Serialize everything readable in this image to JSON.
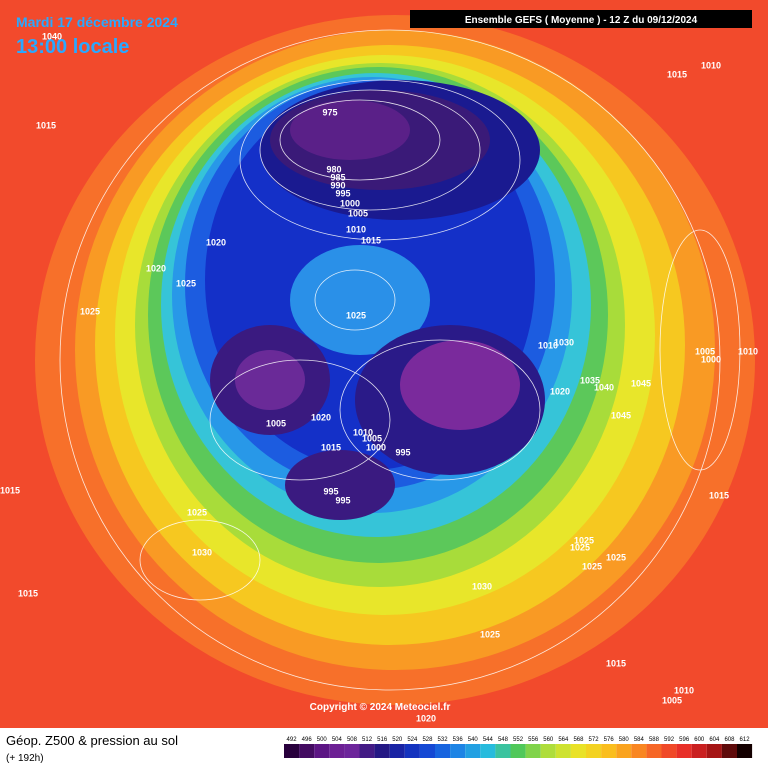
{
  "header": {
    "date": "Mardi 17 décembre 2024",
    "time": "13:00 locale",
    "run": "Ensemble GEFS  ( Moyenne )  -  12 Z du 09/12/2024"
  },
  "footer": {
    "title": "Géop. Z500 & pression au sol",
    "lead": "(+ 192h)",
    "copyright": "Copyright © 2024 Meteociel.fr"
  },
  "scale": {
    "values": [
      492,
      496,
      500,
      504,
      508,
      512,
      516,
      520,
      524,
      528,
      532,
      536,
      540,
      544,
      548,
      552,
      556,
      560,
      564,
      568,
      572,
      576,
      580,
      584,
      588,
      592,
      596,
      600,
      604,
      608,
      612
    ]
  },
  "isobars": [
    975,
    980,
    985,
    990,
    995,
    1000,
    1005,
    1010,
    1015,
    1020,
    1020,
    1025,
    1025,
    1025,
    1015,
    1015,
    1010,
    1005,
    1020,
    1010,
    1005,
    1015,
    1000,
    995,
    995,
    995,
    1010,
    1030,
    1020,
    1035,
    1040,
    1045,
    1045,
    1005,
    1000,
    1010,
    1015,
    1025,
    1030,
    1015,
    1015,
    1025,
    1025,
    1025,
    1025,
    1030,
    1025,
    1015,
    1010,
    1005,
    1020,
    1040
  ]
}
